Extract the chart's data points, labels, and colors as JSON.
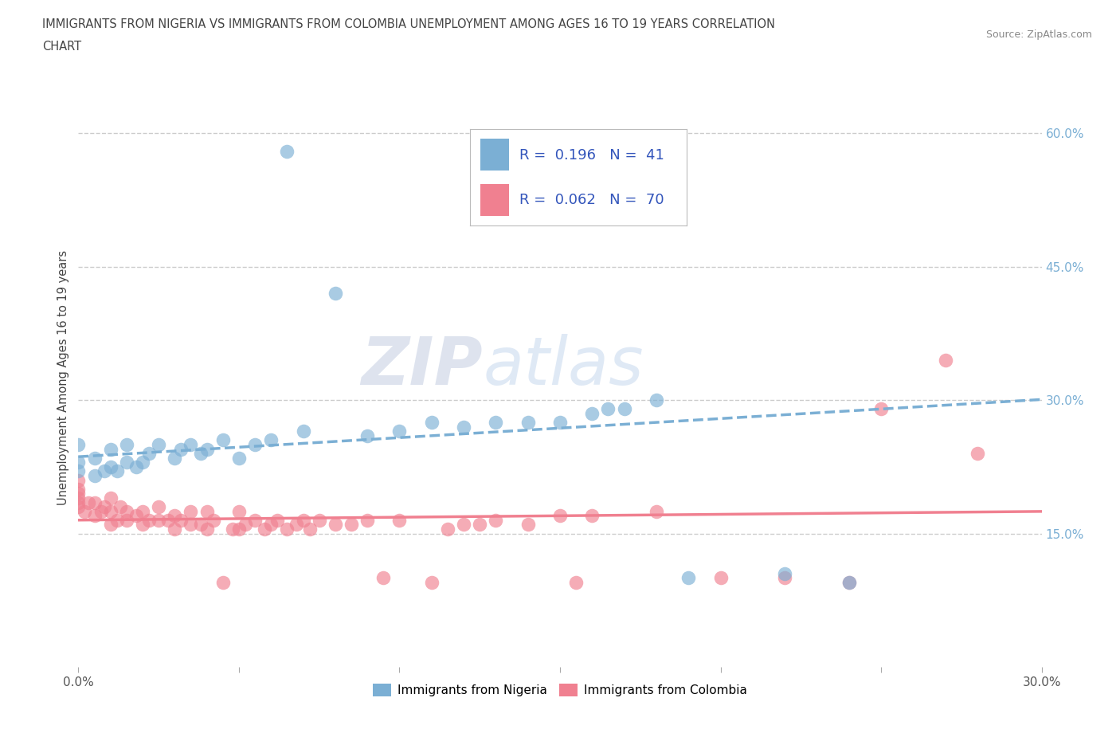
{
  "title_line1": "IMMIGRANTS FROM NIGERIA VS IMMIGRANTS FROM COLOMBIA UNEMPLOYMENT AMONG AGES 16 TO 19 YEARS CORRELATION",
  "title_line2": "CHART",
  "source": "Source: ZipAtlas.com",
  "ylabel": "Unemployment Among Ages 16 to 19 years",
  "xlim": [
    0.0,
    0.3
  ],
  "ylim": [
    0.0,
    0.65
  ],
  "nigeria_color": "#7bafd4",
  "colombia_color": "#f08090",
  "nigeria_R": 0.196,
  "nigeria_N": 41,
  "colombia_R": 0.062,
  "colombia_N": 70,
  "background_color": "#ffffff",
  "grid_color": "#cccccc",
  "nigeria_x": [
    0.0,
    0.0,
    0.0,
    0.005,
    0.005,
    0.008,
    0.01,
    0.01,
    0.012,
    0.015,
    0.015,
    0.018,
    0.02,
    0.022,
    0.025,
    0.03,
    0.032,
    0.035,
    0.038,
    0.04,
    0.045,
    0.05,
    0.055,
    0.06,
    0.065,
    0.07,
    0.08,
    0.09,
    0.1,
    0.11,
    0.12,
    0.13,
    0.14,
    0.15,
    0.16,
    0.165,
    0.17,
    0.18,
    0.19,
    0.22,
    0.24
  ],
  "nigeria_y": [
    0.22,
    0.23,
    0.25,
    0.215,
    0.235,
    0.22,
    0.225,
    0.245,
    0.22,
    0.23,
    0.25,
    0.225,
    0.23,
    0.24,
    0.25,
    0.235,
    0.245,
    0.25,
    0.24,
    0.245,
    0.255,
    0.235,
    0.25,
    0.255,
    0.58,
    0.265,
    0.42,
    0.26,
    0.265,
    0.275,
    0.27,
    0.275,
    0.275,
    0.275,
    0.285,
    0.29,
    0.29,
    0.3,
    0.1,
    0.105,
    0.095
  ],
  "colombia_x": [
    0.0,
    0.0,
    0.0,
    0.0,
    0.0,
    0.0,
    0.002,
    0.003,
    0.005,
    0.005,
    0.007,
    0.008,
    0.01,
    0.01,
    0.01,
    0.012,
    0.013,
    0.015,
    0.015,
    0.018,
    0.02,
    0.02,
    0.022,
    0.025,
    0.025,
    0.028,
    0.03,
    0.03,
    0.032,
    0.035,
    0.035,
    0.038,
    0.04,
    0.04,
    0.042,
    0.045,
    0.048,
    0.05,
    0.05,
    0.052,
    0.055,
    0.058,
    0.06,
    0.062,
    0.065,
    0.068,
    0.07,
    0.072,
    0.075,
    0.08,
    0.085,
    0.09,
    0.095,
    0.1,
    0.11,
    0.115,
    0.12,
    0.125,
    0.13,
    0.14,
    0.15,
    0.155,
    0.16,
    0.18,
    0.2,
    0.22,
    0.24,
    0.25,
    0.27,
    0.28
  ],
  "colombia_y": [
    0.18,
    0.185,
    0.19,
    0.195,
    0.2,
    0.21,
    0.175,
    0.185,
    0.17,
    0.185,
    0.175,
    0.18,
    0.16,
    0.175,
    0.19,
    0.165,
    0.18,
    0.165,
    0.175,
    0.17,
    0.16,
    0.175,
    0.165,
    0.165,
    0.18,
    0.165,
    0.155,
    0.17,
    0.165,
    0.16,
    0.175,
    0.16,
    0.155,
    0.175,
    0.165,
    0.095,
    0.155,
    0.155,
    0.175,
    0.16,
    0.165,
    0.155,
    0.16,
    0.165,
    0.155,
    0.16,
    0.165,
    0.155,
    0.165,
    0.16,
    0.16,
    0.165,
    0.1,
    0.165,
    0.095,
    0.155,
    0.16,
    0.16,
    0.165,
    0.16,
    0.17,
    0.095,
    0.17,
    0.175,
    0.1,
    0.1,
    0.095,
    0.29,
    0.345,
    0.24
  ],
  "watermark_zip": "ZIP",
  "watermark_atlas": "atlas"
}
